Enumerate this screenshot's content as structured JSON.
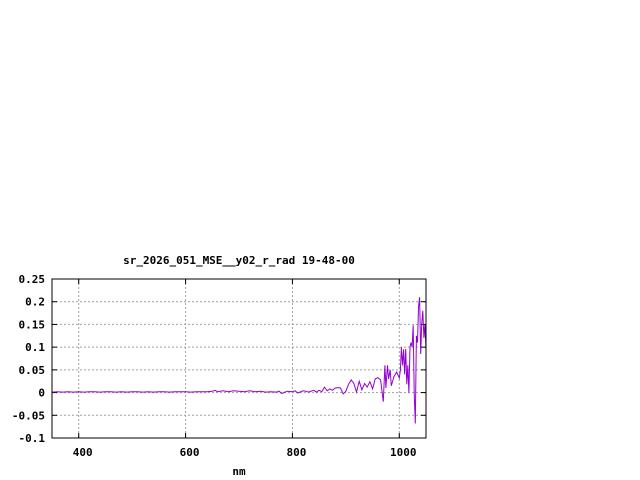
{
  "chart_data": {
    "type": "line",
    "title": "sr_2026_051_MSE__y02_r_rad 19-48-00",
    "xlabel": "nm",
    "ylabel": "",
    "xlim": [
      350,
      1050
    ],
    "ylim": [
      -0.1,
      0.25
    ],
    "xticks": [
      400,
      600,
      800,
      1000
    ],
    "xtick_labels": [
      "400",
      "600",
      "800",
      "1000"
    ],
    "yticks": [
      -0.1,
      -0.05,
      0,
      0.05,
      0.1,
      0.15,
      0.2,
      0.25
    ],
    "ytick_labels": [
      "-0.1",
      "-0.05",
      "0",
      "0.05",
      "0.1",
      "0.15",
      "0.2",
      "0.25"
    ],
    "grid": true,
    "series": [
      {
        "color": "#9400d3",
        "x": [
          350,
          360,
          370,
          380,
          390,
          400,
          410,
          420,
          430,
          440,
          450,
          460,
          470,
          480,
          490,
          500,
          510,
          520,
          530,
          540,
          550,
          560,
          570,
          580,
          590,
          600,
          610,
          620,
          630,
          640,
          650,
          655,
          660,
          670,
          680,
          690,
          700,
          710,
          720,
          730,
          740,
          750,
          760,
          770,
          775,
          780,
          790,
          800,
          805,
          810,
          820,
          825,
          830,
          840,
          845,
          850,
          855,
          860,
          865,
          870,
          875,
          880,
          885,
          890,
          895,
          900,
          905,
          910,
          915,
          920,
          925,
          930,
          935,
          940,
          945,
          950,
          955,
          960,
          965,
          968,
          970,
          973,
          975,
          978,
          980,
          983,
          985,
          990,
          995,
          1000,
          1002,
          1004,
          1006,
          1008,
          1010,
          1012,
          1014,
          1016,
          1018,
          1020,
          1022,
          1024,
          1026,
          1028,
          1030,
          1032,
          1034,
          1036,
          1038,
          1040,
          1042,
          1044,
          1046,
          1048,
          1050
        ],
        "y": [
          0.001,
          0.002,
          0.001,
          0.002,
          0.001,
          0.002,
          0.001,
          0.002,
          0.002,
          0.001,
          0.002,
          0.002,
          0.001,
          0.002,
          0.001,
          0.002,
          0.002,
          0.001,
          0.002,
          0.001,
          0.002,
          0.002,
          0.001,
          0.002,
          0.002,
          0.002,
          0.001,
          0.002,
          0.002,
          0.002,
          0.003,
          0.005,
          0.002,
          0.004,
          0.002,
          0.004,
          0.003,
          0.002,
          0.004,
          0.002,
          0.003,
          0.001,
          0.002,
          0.001,
          0.003,
          -0.002,
          0.003,
          0.002,
          0.004,
          -0.001,
          0.004,
          0.003,
          0.001,
          0.005,
          0.001,
          0.005,
          0.002,
          0.012,
          0.004,
          0.008,
          0.005,
          0.01,
          0.011,
          0.01,
          -0.003,
          0.003,
          0.018,
          0.028,
          0.02,
          0.001,
          0.025,
          0.006,
          0.02,
          0.012,
          0.024,
          0.008,
          0.03,
          0.033,
          0.028,
          0.0,
          -0.02,
          0.06,
          0.01,
          0.06,
          0.03,
          0.05,
          0.015,
          0.035,
          0.045,
          0.032,
          0.05,
          0.1,
          0.06,
          0.095,
          0.04,
          0.096,
          0.018,
          0.06,
          0.0,
          0.1,
          0.11,
          0.1,
          0.148,
          0.0,
          -0.068,
          0.125,
          0.11,
          0.188,
          0.21,
          0.085,
          0.15,
          0.18,
          0.12,
          0.15,
          0.095
        ]
      }
    ]
  }
}
